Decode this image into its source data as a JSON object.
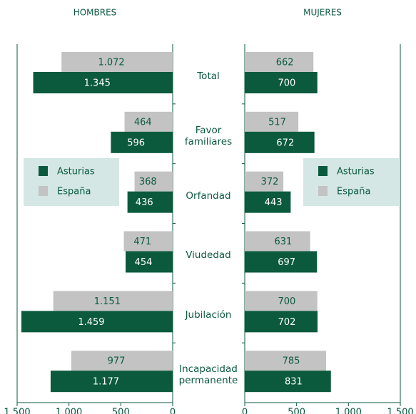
{
  "chart_data": {
    "type": "bar",
    "orientation": "horizontal",
    "categories": [
      "Total",
      "Favor\nfamiliares",
      "Orfandad",
      "Viudedad",
      "Jubilación",
      "Incapacidad\npermanente"
    ],
    "panels": [
      {
        "title": "HOMBRES",
        "xlim": [
          1500,
          0
        ],
        "xticks": [
          {
            "value": 1500,
            "label": "1.500"
          },
          {
            "value": 1000,
            "label": "1.000"
          },
          500,
          0
        ],
        "legend": "left",
        "series": [
          {
            "name": "España",
            "color": "#c3c3c3",
            "values": [
              1072,
              464,
              368,
              471,
              1151,
              977
            ],
            "value_labels": [
              "1.072",
              "464",
              "368",
              "471",
              "1.151",
              "977"
            ]
          },
          {
            "name": "Asturias",
            "color": "#0b5a3e",
            "values": [
              1345,
              596,
              436,
              454,
              1459,
              1177
            ],
            "value_labels": [
              "1.345",
              "596",
              "436",
              "454",
              "1.459",
              "1.177"
            ]
          }
        ]
      },
      {
        "title": "MUJERES",
        "xlim": [
          0,
          1500
        ],
        "xticks": [
          0,
          500,
          {
            "value": 1000,
            "label": "1.000"
          },
          {
            "value": 1500,
            "label": "1.500"
          }
        ],
        "legend": "right",
        "series": [
          {
            "name": "España",
            "color": "#c3c3c3",
            "values": [
              662,
              517,
              372,
              631,
              700,
              785
            ],
            "value_labels": [
              "662",
              "517",
              "372",
              "631",
              "700",
              "785"
            ]
          },
          {
            "name": "Asturias",
            "color": "#0b5a3e",
            "values": [
              700,
              672,
              443,
              697,
              702,
              831
            ],
            "value_labels": [
              "700",
              "672",
              "443",
              "697",
              "702",
              "831"
            ]
          }
        ]
      }
    ]
  }
}
